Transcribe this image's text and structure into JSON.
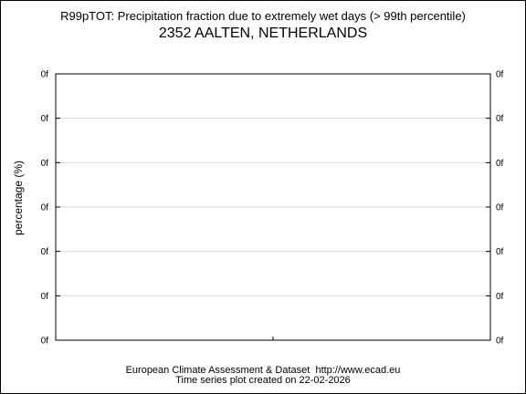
{
  "page": {
    "title_line1": "R99pTOT: Precipitation fraction due to extremely wet days (> 99th percentile)",
    "title_line2": "2352 AALTEN, NETHERLANDS",
    "footer_line1": "European Climate Assessment & Dataset  http://www.ecad.eu",
    "footer_line2": "Time series plot created on 22-02-2026"
  },
  "chart_data": {
    "type": "line",
    "title": "R99pTOT: Precipitation fraction due to extremely wet days (> 99th percentile)",
    "subtitle": "2352 AALTEN, NETHERLANDS",
    "xlabel": "",
    "ylabel": "percentage (%)",
    "y_tick_labels": [
      "0f",
      "0f",
      "0f",
      "0f",
      "0f",
      "0f",
      "0f"
    ],
    "series": [],
    "grid": true,
    "legend": "none",
    "colors": {
      "grid": "#d9d9d9",
      "axis": "#000000",
      "background": "#ffffff"
    }
  }
}
